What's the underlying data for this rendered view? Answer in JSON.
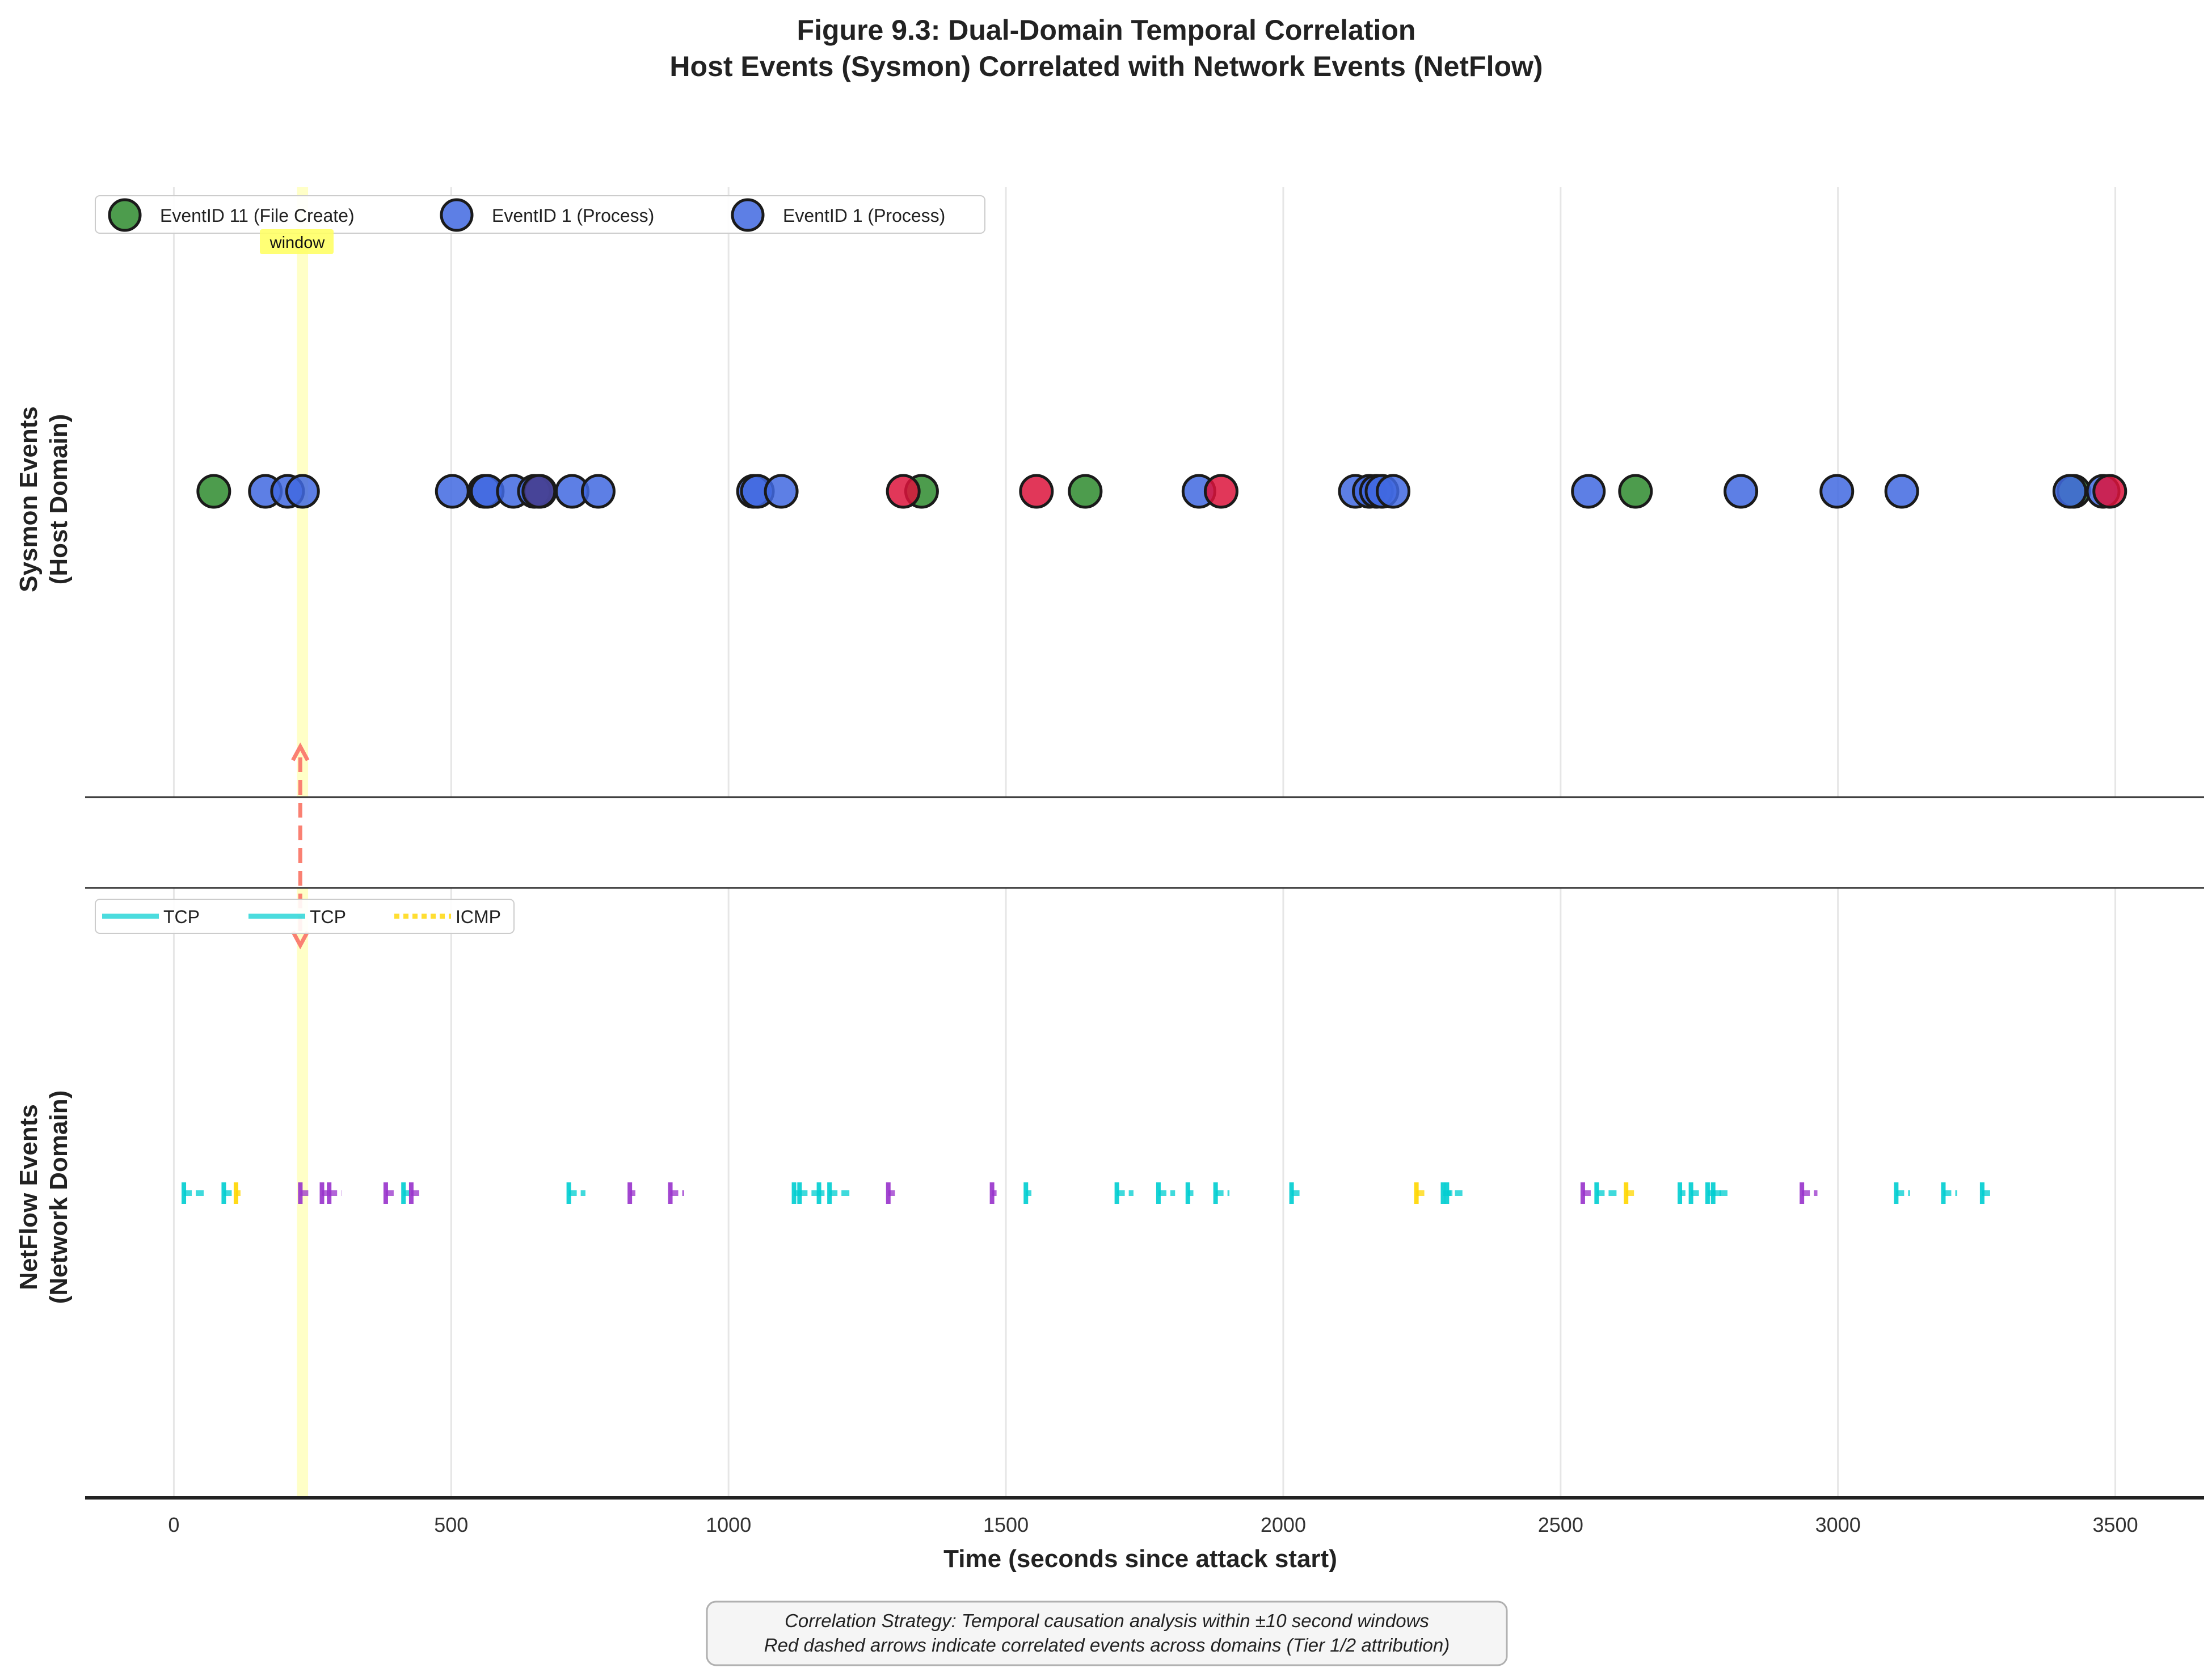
{
  "figure": {
    "title_line1": "Figure 9.3: Dual-Domain Temporal Correlation",
    "title_line2": "Host Events (Sysmon) Correlated with Network Events (NetFlow)",
    "note_line1": "Correlation Strategy: Temporal causation analysis within ±10 second windows",
    "note_line2": "Red dashed arrows indicate correlated events across domains (Tier 1/2 attribution)",
    "correlation_window_label": "window"
  },
  "chart_data": [
    {
      "type": "scatter",
      "panel": "host",
      "ylabel_line1": "Sysmon Events",
      "ylabel_line2": "(Host Domain)",
      "xlim": [
        -160,
        3660
      ],
      "legend_placement": "top-left",
      "legend": [
        {
          "label": "EventID 11 (File Create)",
          "color": "#2e8b2e"
        },
        {
          "label": "EventID 1 (Process)",
          "color": "#4169e1"
        },
        {
          "label": "EventID 1 (Process)",
          "color": "#4169e1"
        }
      ],
      "series": [
        {
          "color": "#2e8b2e",
          "x": [
            72,
            1348,
            1643,
            2635,
            3425
          ]
        },
        {
          "color": "#4169e1",
          "x": [
            165,
            205,
            232,
            502,
            560,
            565,
            612,
            650,
            660,
            718,
            765,
            1045,
            1052,
            1095,
            1848,
            2130,
            2155,
            2168,
            2178,
            2198,
            2550,
            2825,
            2998,
            3115,
            3418,
            3478
          ]
        },
        {
          "color": "#dc143c",
          "x": [
            1315,
            1555,
            1888,
            3490
          ]
        },
        {
          "color": "#483d8b",
          "x": [
            658
          ]
        }
      ]
    },
    {
      "type": "scatter",
      "panel": "network",
      "ylabel_line1": "NetFlow Events",
      "ylabel_line2": "(Network Domain)",
      "xlabel": "Time (seconds since attack start)",
      "xlim": [
        -160,
        3660
      ],
      "xticks": [
        "0",
        "500",
        "1000",
        "1500",
        "2000",
        "2500",
        "3000",
        "3500"
      ],
      "legend_placement": "top-left",
      "legend": [
        {
          "label": "TCP",
          "color": "#00ced1",
          "style": "solid"
        },
        {
          "label": "TCP",
          "color": "#00ced1",
          "style": "solid"
        },
        {
          "label": "ICMP",
          "color": "#ffd700",
          "style": "dotted"
        }
      ],
      "flows": [
        {
          "x": 18,
          "d": 38,
          "color": "#00ced1"
        },
        {
          "x": 90,
          "d": 15,
          "color": "#00ced1"
        },
        {
          "x": 112,
          "d": 6,
          "color": "#ffd700"
        },
        {
          "x": 228,
          "d": 20,
          "color": "#9932cc"
        },
        {
          "x": 267,
          "d": 12,
          "color": "#9932cc"
        },
        {
          "x": 280,
          "d": 22,
          "color": "#9932cc"
        },
        {
          "x": 382,
          "d": 20,
          "color": "#9932cc"
        },
        {
          "x": 414,
          "d": 12,
          "color": "#00ced1"
        },
        {
          "x": 428,
          "d": 15,
          "color": "#9932cc"
        },
        {
          "x": 712,
          "d": 30,
          "color": "#00ced1"
        },
        {
          "x": 822,
          "d": 10,
          "color": "#9932cc"
        },
        {
          "x": 895,
          "d": 25,
          "color": "#9932cc"
        },
        {
          "x": 1118,
          "d": 10,
          "color": "#00ced1"
        },
        {
          "x": 1128,
          "d": 35,
          "color": "#00ced1"
        },
        {
          "x": 1163,
          "d": 10,
          "color": "#00ced1"
        },
        {
          "x": 1182,
          "d": 40,
          "color": "#00ced1"
        },
        {
          "x": 1288,
          "d": 12,
          "color": "#9932cc"
        },
        {
          "x": 1475,
          "d": 6,
          "color": "#9932cc"
        },
        {
          "x": 1536,
          "d": 10,
          "color": "#00ced1"
        },
        {
          "x": 1700,
          "d": 30,
          "color": "#00ced1"
        },
        {
          "x": 1775,
          "d": 30,
          "color": "#00ced1"
        },
        {
          "x": 1828,
          "d": 10,
          "color": "#00ced1"
        },
        {
          "x": 1878,
          "d": 25,
          "color": "#00ced1"
        },
        {
          "x": 2015,
          "d": 15,
          "color": "#00ced1"
        },
        {
          "x": 2240,
          "d": 20,
          "color": "#ffd700"
        },
        {
          "x": 2288,
          "d": 35,
          "color": "#00ced1"
        },
        {
          "x": 2295,
          "d": 10,
          "color": "#00ced1"
        },
        {
          "x": 2540,
          "d": 20,
          "color": "#9932cc"
        },
        {
          "x": 2565,
          "d": 40,
          "color": "#00ced1"
        },
        {
          "x": 2618,
          "d": 15,
          "color": "#ffd700"
        },
        {
          "x": 2715,
          "d": 10,
          "color": "#00ced1"
        },
        {
          "x": 2735,
          "d": 20,
          "color": "#00ced1"
        },
        {
          "x": 2765,
          "d": 38,
          "color": "#00ced1"
        },
        {
          "x": 2775,
          "d": 20,
          "color": "#00ced1"
        },
        {
          "x": 2935,
          "d": 28,
          "color": "#9932cc"
        },
        {
          "x": 3105,
          "d": 25,
          "color": "#00ced1"
        },
        {
          "x": 3190,
          "d": 25,
          "color": "#00ced1"
        },
        {
          "x": 3260,
          "d": 15,
          "color": "#00ced1"
        }
      ]
    }
  ],
  "correlations": [
    {
      "x": 232
    }
  ]
}
